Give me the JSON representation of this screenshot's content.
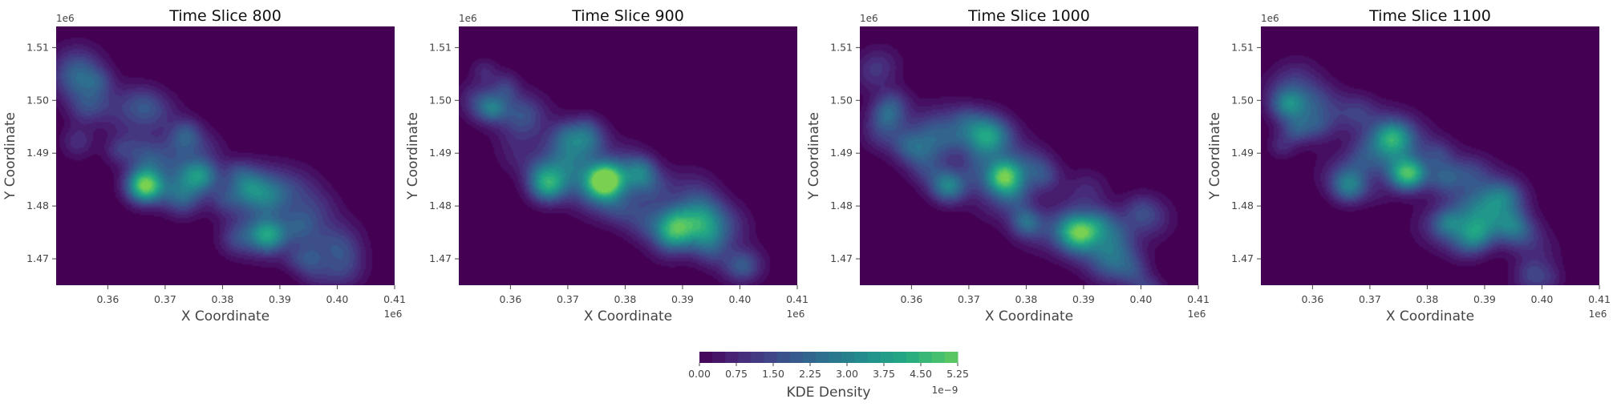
{
  "chart_data": [
    {
      "type": "heatmap",
      "title": "Time Slice 800",
      "xlabel": "X Coordinate",
      "ylabel": "Y Coordinate",
      "x_offset_label": "1e6",
      "y_offset_label": "1e6",
      "xlim": [
        0.351,
        0.41
      ],
      "ylim": [
        1.465,
        1.514
      ],
      "xticks": [
        "0.36",
        "0.37",
        "0.38",
        "0.39",
        "0.40",
        "0.41"
      ],
      "yticks": [
        "1.47",
        "1.48",
        "1.49",
        "1.50",
        "1.51"
      ],
      "hotspots": [
        {
          "x": 0.3665,
          "y": 1.4838,
          "density": 5.2
        },
        {
          "x": 0.3762,
          "y": 1.4858,
          "density": 2.9
        },
        {
          "x": 0.388,
          "y": 1.4745,
          "density": 3.1
        },
        {
          "x": 0.3735,
          "y": 1.4925,
          "density": 1.4
        },
        {
          "x": 0.356,
          "y": 1.4985,
          "density": 1.1
        },
        {
          "x": 0.3825,
          "y": 1.4735,
          "density": 1.0
        },
        {
          "x": 0.393,
          "y": 1.476,
          "density": 0.9
        },
        {
          "x": 0.384,
          "y": 1.485,
          "density": 1.0
        }
      ]
    },
    {
      "type": "heatmap",
      "title": "Time Slice 900",
      "xlabel": "X Coordinate",
      "ylabel": "Y Coordinate",
      "x_offset_label": "1e6",
      "y_offset_label": "1e6",
      "xlim": [
        0.351,
        0.41
      ],
      "ylim": [
        1.465,
        1.514
      ],
      "xticks": [
        "0.36",
        "0.37",
        "0.38",
        "0.39",
        "0.40",
        "0.41"
      ],
      "yticks": [
        "1.47",
        "1.48",
        "1.49",
        "1.50",
        "1.51"
      ],
      "hotspots": [
        {
          "x": 0.3765,
          "y": 1.485,
          "density": 5.0
        },
        {
          "x": 0.3665,
          "y": 1.4838,
          "density": 3.1
        },
        {
          "x": 0.3885,
          "y": 1.475,
          "density": 2.6
        },
        {
          "x": 0.3735,
          "y": 1.4925,
          "density": 1.3
        },
        {
          "x": 0.356,
          "y": 1.4985,
          "density": 1.1
        },
        {
          "x": 0.3825,
          "y": 1.4855,
          "density": 1.2
        },
        {
          "x": 0.393,
          "y": 1.477,
          "density": 0.9
        }
      ]
    },
    {
      "type": "heatmap",
      "title": "Time Slice 1000",
      "xlabel": "X Coordinate",
      "ylabel": "Y Coordinate",
      "x_offset_label": "1e6",
      "y_offset_label": "1e6",
      "xlim": [
        0.351,
        0.41
      ],
      "ylim": [
        1.465,
        1.514
      ],
      "xticks": [
        "0.36",
        "0.37",
        "0.38",
        "0.39",
        "0.40",
        "0.41"
      ],
      "yticks": [
        "1.47",
        "1.48",
        "1.49",
        "1.50",
        "1.51"
      ],
      "hotspots": [
        {
          "x": 0.3762,
          "y": 1.4855,
          "density": 4.4
        },
        {
          "x": 0.3665,
          "y": 1.4838,
          "density": 3.0
        },
        {
          "x": 0.3885,
          "y": 1.475,
          "density": 2.2
        },
        {
          "x": 0.3735,
          "y": 1.4925,
          "density": 1.3
        },
        {
          "x": 0.356,
          "y": 1.4985,
          "density": 1.2
        },
        {
          "x": 0.383,
          "y": 1.4855,
          "density": 1.3
        },
        {
          "x": 0.3955,
          "y": 1.475,
          "density": 1.0
        }
      ]
    },
    {
      "type": "heatmap",
      "title": "Time Slice 1100",
      "xlabel": "X Coordinate",
      "ylabel": "Y Coordinate",
      "x_offset_label": "1e6",
      "y_offset_label": "1e6",
      "xlim": [
        0.351,
        0.41
      ],
      "ylim": [
        1.465,
        1.514
      ],
      "xticks": [
        "0.36",
        "0.37",
        "0.38",
        "0.39",
        "0.40",
        "0.41"
      ],
      "yticks": [
        "1.47",
        "1.48",
        "1.49",
        "1.50",
        "1.51"
      ],
      "hotspots": [
        {
          "x": 0.3765,
          "y": 1.486,
          "density": 4.2
        },
        {
          "x": 0.3665,
          "y": 1.4838,
          "density": 2.7
        },
        {
          "x": 0.3885,
          "y": 1.4745,
          "density": 1.9
        },
        {
          "x": 0.3735,
          "y": 1.4925,
          "density": 1.3
        },
        {
          "x": 0.356,
          "y": 1.4985,
          "density": 1.2
        },
        {
          "x": 0.383,
          "y": 1.4855,
          "density": 1.3
        },
        {
          "x": 0.395,
          "y": 1.4755,
          "density": 1.0
        }
      ]
    }
  ],
  "colorbar": {
    "label": "KDE Density",
    "offset_label": "1e−9",
    "range": [
      0,
      5.25
    ],
    "ticks": [
      "0.00",
      "0.75",
      "1.50",
      "2.25",
      "3.00",
      "3.75",
      "4.50",
      "5.25"
    ],
    "levels": 20,
    "colormap": "viridis",
    "colors": [
      "#440154",
      "#482475",
      "#414487",
      "#355f8d",
      "#2a788e",
      "#21918c",
      "#22a884",
      "#44bf70",
      "#7ad151"
    ]
  }
}
